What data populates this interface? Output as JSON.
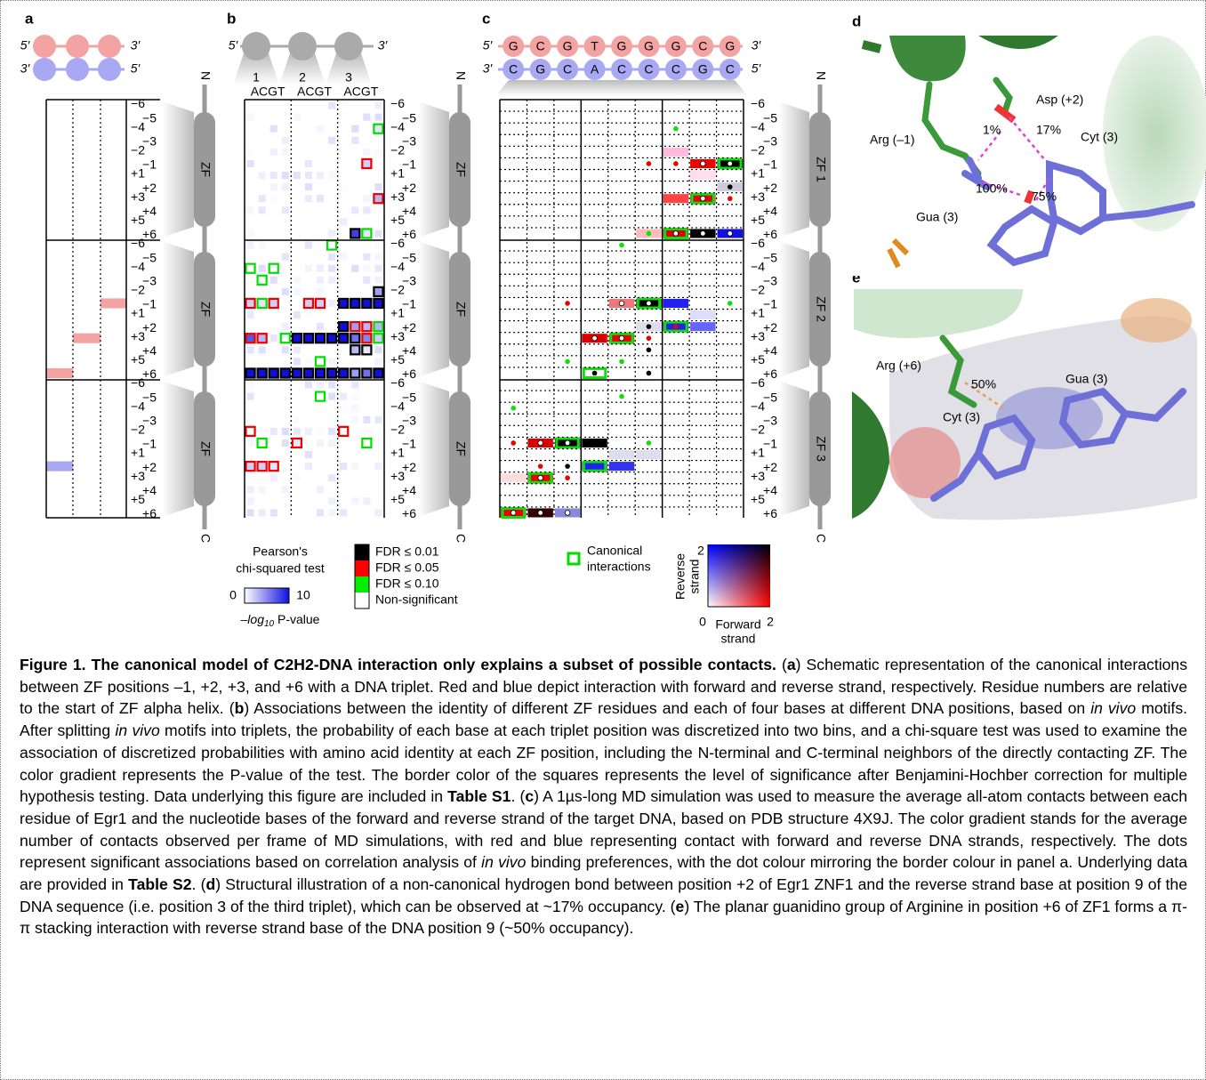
{
  "figure": {
    "panel_labels": [
      "a",
      "b",
      "c",
      "d",
      "e"
    ],
    "five_prime": "5′",
    "three_prime": "3′",
    "triplets": [
      "1",
      "2",
      "3"
    ],
    "bases": "ACGT",
    "positions": [
      "−6",
      "−5",
      "−4",
      "−3",
      "−2",
      "−1",
      "+1",
      "+2",
      "+3",
      "+4",
      "+5",
      "+6"
    ],
    "n_term": "N",
    "c_term": "C",
    "zf_label": "ZF",
    "zf_names": [
      "ZF 1",
      "ZF 2",
      "ZF 3"
    ],
    "dna": {
      "forward": [
        "G",
        "C",
        "G",
        "T",
        "G",
        "G",
        "G",
        "C",
        "G"
      ],
      "reverse": [
        "C",
        "G",
        "C",
        "A",
        "C",
        "C",
        "C",
        "G",
        "C"
      ]
    },
    "legend_b": {
      "title_1": "Pearson's",
      "title_2": "chi-squared test",
      "min": "0",
      "max": "10",
      "axis_pre": "–log",
      "axis_sub": "10",
      "axis_post": " P-value"
    },
    "fdr": [
      "FDR ≤ 0.01",
      "FDR ≤ 0.05",
      "FDR ≤ 0.10",
      "Non-significant"
    ],
    "legend_c": {
      "canonical_1": "Canonical",
      "canonical_2": "interactions",
      "y_1": "Reverse",
      "y_2": "strand",
      "x_1": "Forward",
      "x_2": "strand",
      "min": "0",
      "max_x": "2",
      "max_y": "2"
    },
    "panel_d": {
      "arg": "Arg (–1)",
      "asp": "Asp (+2)",
      "cyt": "Cyt (3)",
      "gua": "Gua (3)",
      "p1": "1%",
      "p2": "17%",
      "p3": "100%",
      "p4": "75%"
    },
    "panel_e": {
      "arg": "Arg (+6)",
      "pct": "50%",
      "cyt": "Cyt (3)",
      "gua": "Gua (3)"
    }
  },
  "caption": [
    "Figure 1. The canonical model of C2H2-DNA interaction only explains a subset of possible contacts.",
    " (",
    "a",
    ") Schematic representation of the canonical interactions between ZF positions –1, +2, +3, and +6 with a DNA triplet. Red and blue depict interaction with forward and reverse strand, respectively. Residue numbers are relative to the start of ZF alpha helix. (",
    "b",
    ") Associations between the identity of different ZF residues and each of four bases at different DNA positions, based on ",
    "in vivo",
    " motifs. After splitting ",
    "in vivo",
    " motifs into triplets, the probability of each base at each triplet position was discretized into two bins, and a chi-square test was used to examine the association of discretized probabilities with amino acid identity at each ZF position, including the N-terminal and C-terminal neighbors of the directly contacting ZF. The color gradient represents the P-value of the test. The border color of the squares represents the level of significance after Benjamini-Hochber correction for multiple hypothesis testing. Data underlying this figure are included in ",
    "Table S1",
    ". (",
    "c",
    ") A 1µs-long MD simulation was used to measure the average all-atom contacts between each residue of Egr1 and the nucleotide bases of the forward and reverse strand of the target DNA, based on PDB structure 4X9J. The color gradient stands for the average number of contacts observed per frame of MD simulations, with red and blue representing contact with forward and reverse DNA strands, respectively. The dots represent significant associations based on correlation analysis of ",
    "in vivo",
    " binding preferences, with the dot colour mirroring the border colour in panel a. Underlying data are provided in ",
    "Table S2",
    ". (",
    "d",
    ") Structural illustration of a non-canonical hydrogen bond between position +2 of Egr1 ZNF1 and the reverse strand base at position 9 of the DNA sequence (i.e. position 3 of the third triplet), which can be observed at ~17% occupancy. (",
    "e",
    ") The planar guanidino group of Arginine in position +6 of ZF1 forms a π-π stacking interaction with reverse strand base of the DNA position 9 (~50% occupancy)."
  ]
}
